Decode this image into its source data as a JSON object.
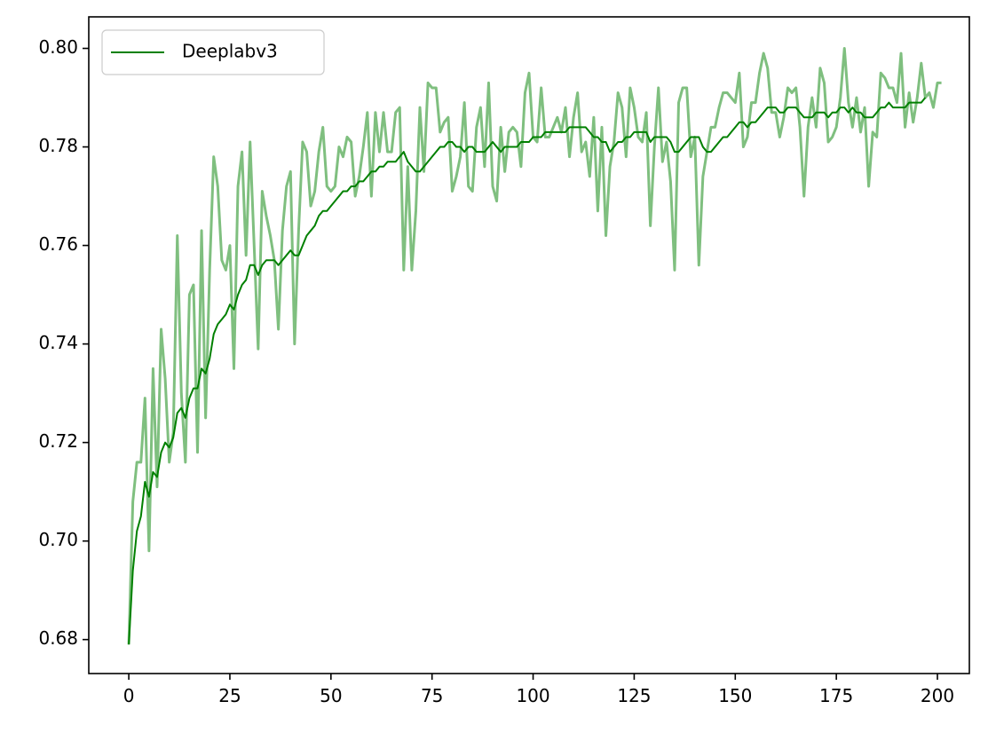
{
  "chart_data": {
    "type": "line",
    "title": "",
    "xlabel": "",
    "ylabel": "",
    "xlim": [
      -9.9,
      207.9
    ],
    "ylim": [
      0.6731,
      0.8064
    ],
    "xticks": [
      0,
      25,
      50,
      75,
      100,
      125,
      150,
      175,
      200
    ],
    "xtick_labels": [
      "0",
      "25",
      "50",
      "75",
      "100",
      "125",
      "150",
      "175",
      "200"
    ],
    "yticks": [
      0.68,
      0.7,
      0.72,
      0.74,
      0.76,
      0.78,
      0.8
    ],
    "ytick_labels": [
      "0.68",
      "0.70",
      "0.72",
      "0.74",
      "0.76",
      "0.78",
      "0.80"
    ],
    "grid": false,
    "legend_position": "upper-left",
    "legend_entries": [
      "Deeplabv3"
    ],
    "series": [
      {
        "name": "Deeplabv3",
        "color": "#008000",
        "style": "smoothed",
        "x_start": 0,
        "x_step": 1,
        "values": [
          0.679,
          0.694,
          0.702,
          0.705,
          0.712,
          0.709,
          0.714,
          0.713,
          0.718,
          0.72,
          0.719,
          0.721,
          0.726,
          0.727,
          0.725,
          0.729,
          0.731,
          0.731,
          0.735,
          0.734,
          0.737,
          0.742,
          0.744,
          0.745,
          0.746,
          0.748,
          0.747,
          0.75,
          0.752,
          0.753,
          0.756,
          0.756,
          0.754,
          0.756,
          0.757,
          0.757,
          0.757,
          0.756,
          0.757,
          0.758,
          0.759,
          0.758,
          0.758,
          0.76,
          0.762,
          0.763,
          0.764,
          0.766,
          0.767,
          0.767,
          0.768,
          0.769,
          0.77,
          0.771,
          0.771,
          0.772,
          0.772,
          0.773,
          0.773,
          0.774,
          0.775,
          0.775,
          0.776,
          0.776,
          0.777,
          0.777,
          0.777,
          0.778,
          0.779,
          0.777,
          0.776,
          0.775,
          0.775,
          0.776,
          0.777,
          0.778,
          0.779,
          0.78,
          0.78,
          0.781,
          0.781,
          0.78,
          0.78,
          0.779,
          0.78,
          0.78,
          0.779,
          0.779,
          0.779,
          0.78,
          0.781,
          0.78,
          0.779,
          0.78,
          0.78,
          0.78,
          0.78,
          0.781,
          0.781,
          0.781,
          0.782,
          0.782,
          0.782,
          0.783,
          0.783,
          0.783,
          0.783,
          0.783,
          0.783,
          0.784,
          0.784,
          0.784,
          0.784,
          0.784,
          0.783,
          0.782,
          0.782,
          0.781,
          0.781,
          0.779,
          0.78,
          0.781,
          0.781,
          0.782,
          0.782,
          0.783,
          0.783,
          0.783,
          0.783,
          0.781,
          0.782,
          0.782,
          0.782,
          0.782,
          0.781,
          0.779,
          0.779,
          0.78,
          0.781,
          0.782,
          0.782,
          0.782,
          0.78,
          0.779,
          0.779,
          0.78,
          0.781,
          0.782,
          0.782,
          0.783,
          0.784,
          0.785,
          0.785,
          0.784,
          0.785,
          0.785,
          0.786,
          0.787,
          0.788,
          0.788,
          0.788,
          0.787,
          0.787,
          0.788,
          0.788,
          0.788,
          0.787,
          0.786,
          0.786,
          0.786,
          0.787,
          0.787,
          0.787,
          0.786,
          0.787,
          0.787,
          0.788,
          0.788,
          0.787,
          0.788,
          0.787,
          0.787,
          0.786,
          0.786,
          0.786,
          0.787,
          0.788,
          0.788,
          0.789,
          0.788,
          0.788,
          0.788,
          0.788,
          0.789,
          0.789,
          0.789,
          0.789,
          0.79
        ]
      },
      {
        "name": "",
        "color": "#008000",
        "style": "raw",
        "x_start": 0,
        "x_step": 1,
        "values": [
          0.679,
          0.708,
          0.716,
          0.716,
          0.729,
          0.698,
          0.735,
          0.711,
          0.743,
          0.733,
          0.716,
          0.722,
          0.762,
          0.73,
          0.716,
          0.75,
          0.752,
          0.718,
          0.763,
          0.725,
          0.755,
          0.778,
          0.772,
          0.757,
          0.755,
          0.76,
          0.735,
          0.772,
          0.779,
          0.758,
          0.781,
          0.76,
          0.739,
          0.771,
          0.766,
          0.762,
          0.757,
          0.743,
          0.763,
          0.772,
          0.775,
          0.74,
          0.763,
          0.781,
          0.779,
          0.768,
          0.771,
          0.779,
          0.784,
          0.772,
          0.771,
          0.772,
          0.78,
          0.778,
          0.782,
          0.781,
          0.77,
          0.774,
          0.78,
          0.787,
          0.77,
          0.787,
          0.779,
          0.787,
          0.779,
          0.779,
          0.787,
          0.788,
          0.755,
          0.776,
          0.755,
          0.767,
          0.788,
          0.775,
          0.793,
          0.792,
          0.792,
          0.783,
          0.785,
          0.786,
          0.771,
          0.774,
          0.778,
          0.789,
          0.772,
          0.771,
          0.784,
          0.788,
          0.776,
          0.793,
          0.772,
          0.769,
          0.784,
          0.775,
          0.783,
          0.784,
          0.783,
          0.776,
          0.791,
          0.795,
          0.782,
          0.781,
          0.792,
          0.782,
          0.782,
          0.784,
          0.786,
          0.783,
          0.788,
          0.778,
          0.786,
          0.791,
          0.779,
          0.781,
          0.774,
          0.786,
          0.767,
          0.784,
          0.762,
          0.776,
          0.781,
          0.791,
          0.788,
          0.778,
          0.792,
          0.788,
          0.782,
          0.781,
          0.787,
          0.764,
          0.78,
          0.792,
          0.777,
          0.781,
          0.773,
          0.755,
          0.789,
          0.792,
          0.792,
          0.778,
          0.782,
          0.756,
          0.774,
          0.779,
          0.784,
          0.784,
          0.788,
          0.791,
          0.791,
          0.79,
          0.789,
          0.795,
          0.78,
          0.782,
          0.789,
          0.789,
          0.795,
          0.799,
          0.796,
          0.787,
          0.787,
          0.782,
          0.786,
          0.792,
          0.791,
          0.792,
          0.784,
          0.77,
          0.784,
          0.79,
          0.784,
          0.796,
          0.793,
          0.781,
          0.782,
          0.784,
          0.79,
          0.8,
          0.789,
          0.784,
          0.79,
          0.783,
          0.788,
          0.772,
          0.783,
          0.782,
          0.795,
          0.794,
          0.792,
          0.792,
          0.789,
          0.799,
          0.784,
          0.791,
          0.785,
          0.79,
          0.797,
          0.79,
          0.791,
          0.788,
          0.793,
          0.793
        ]
      }
    ]
  }
}
